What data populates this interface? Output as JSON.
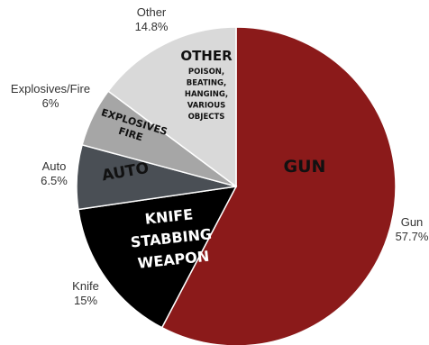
{
  "chart_data": {
    "type": "pie",
    "start_angle_deg": 0,
    "direction": "clockwise",
    "slices": [
      {
        "category": "Gun",
        "value": 57.7,
        "value_label": "57.7%",
        "color": "#8B1A1A",
        "inner_lines": [
          "GUN"
        ],
        "inner_color": "#111111"
      },
      {
        "category": "Knife",
        "value": 15,
        "value_label": "15%",
        "color": "#000000",
        "inner_lines": [
          "KNIFE",
          "STABBING",
          "WEAPON"
        ],
        "inner_color": "#ffffff"
      },
      {
        "category": "Auto",
        "value": 6.5,
        "value_label": "6.5%",
        "color": "#4A4F55",
        "inner_lines": [
          "AUTO"
        ],
        "inner_color": "#111111"
      },
      {
        "category": "Explosives/Fire",
        "value": 6,
        "value_label": "6%",
        "color": "#A6A6A6",
        "inner_lines": [
          "EXPLOSIVES",
          "FIRE"
        ],
        "inner_color": "#111111"
      },
      {
        "category": "Other",
        "value": 14.8,
        "value_label": "14.8%",
        "color": "#D9D9D9",
        "inner_lines": [
          "OTHER"
        ],
        "inner_sub_lines": [
          "POISON,",
          "BEATING,",
          "HANGING,",
          "VARIOUS",
          "OBJECTS"
        ],
        "inner_color": "#111111"
      }
    ]
  }
}
